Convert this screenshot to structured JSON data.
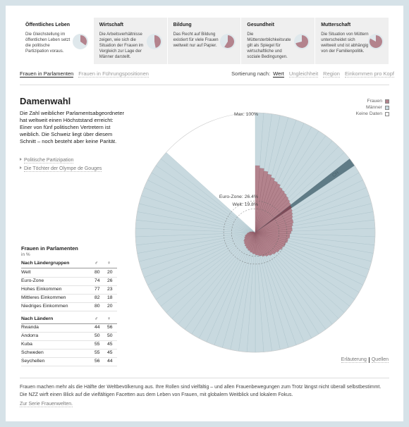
{
  "nav": [
    {
      "title": "Öffentliches Leben",
      "text": "Die Gleichstellung im öffentlichen Leben setzt die politische Partizipation voraus."
    },
    {
      "title": "Wirtschaft",
      "text": "Die Arbeitsverhältnisse zeigen, wie sich die Situation der Frauen im Vergleich zur Lage der Männer darstellt."
    },
    {
      "title": "Bildung",
      "text": "Das Recht auf Bildung existiert für viele Frauen weltweit nur auf Papier."
    },
    {
      "title": "Gesundheit",
      "text": "Die Müttersterblichkeitsrate gilt als Spiegel für wirtschaftliche und soziale Bedingungen."
    },
    {
      "title": "Mutterschaft",
      "text": "Die Situation von Müttern unterscheidet sich weltweit und ist abhängig von der Familienpolitik."
    }
  ],
  "subnav": {
    "tabs": [
      "Frauen in Parlamenten",
      "Frauen in Führungspositionen"
    ],
    "sort_label": "Sortierung nach:",
    "sort_options": [
      "Wert",
      "Ungleichheit",
      "Region",
      "Einkommen pro Kopf"
    ]
  },
  "article": {
    "title": "Damenwahl",
    "text": "Die Zahl weiblicher Parlamentsabgeordneter hat weltweit einen Höchststand erreicht: Einer von fünf politischen Vertretern ist weiblich. Die Schweiz liegt über diesem Schnitt – noch besteht aber keine Parität.",
    "links": [
      "Politische Partizipation",
      "Die Töchter der Olympe de Gouges"
    ]
  },
  "chart_data": {
    "type": "radial-bar",
    "rlim": [
      0,
      100
    ],
    "reference_lines": [
      {
        "value": 100,
        "label": "Max: 100%"
      },
      {
        "value": 26.4,
        "label": "Euro-Zone: 26.4%"
      },
      {
        "value": 19.8,
        "label": "Welt: 19.8%"
      }
    ],
    "no_data": {
      "name": "Keine Daten",
      "color": "#ffffff"
    },
    "highlight_color": "#5f7b86",
    "categories": [
      null,
      null,
      null,
      null,
      null,
      null,
      null,
      null,
      null,
      null,
      null,
      null,
      null,
      "CH",
      null,
      null,
      null,
      null,
      null,
      null,
      null,
      null,
      null,
      null,
      null,
      null,
      null,
      null,
      null,
      null,
      null,
      null,
      null,
      null,
      null,
      null,
      null,
      null,
      null,
      null,
      null,
      null,
      null,
      null,
      null,
      null,
      null,
      null,
      null,
      null,
      null,
      null,
      null,
      null,
      null,
      null,
      null,
      null,
      null,
      null,
      null,
      null,
      null,
      null,
      null,
      null,
      null,
      null,
      null,
      null,
      null,
      null,
      null,
      null,
      null,
      null,
      null,
      null,
      null,
      null,
      null,
      null,
      null,
      null,
      null,
      null,
      null,
      null,
      null,
      null
    ],
    "series": [
      {
        "name": "Frauen",
        "color": "#b3838d",
        "values": [
          56,
          54,
          52,
          50,
          48,
          46,
          45,
          43,
          42,
          41,
          40,
          39,
          38,
          37,
          36,
          35,
          34,
          33,
          33,
          32,
          31,
          31,
          30,
          29,
          29,
          28,
          28,
          27,
          27,
          26,
          26,
          25,
          25,
          24,
          24,
          23,
          23,
          22,
          22,
          21,
          21,
          20,
          20,
          19,
          19,
          18,
          18,
          17,
          17,
          16,
          16,
          15,
          15,
          14,
          14,
          13,
          13,
          12,
          12,
          11,
          10,
          10,
          9,
          9,
          8,
          7,
          7,
          6,
          5,
          5,
          4,
          3,
          3,
          2,
          1,
          1,
          0,
          0,
          null,
          null,
          null,
          null,
          null,
          null,
          null,
          null,
          null,
          null,
          null,
          null
        ]
      },
      {
        "name": "Männer",
        "color": "#c8d9df",
        "values": [
          44,
          46,
          48,
          50,
          52,
          54,
          55,
          57,
          58,
          59,
          60,
          61,
          62,
          63,
          64,
          65,
          66,
          67,
          67,
          68,
          69,
          69,
          70,
          71,
          71,
          72,
          72,
          73,
          73,
          74,
          74,
          75,
          75,
          76,
          76,
          77,
          77,
          78,
          78,
          79,
          79,
          80,
          80,
          81,
          81,
          82,
          82,
          83,
          83,
          84,
          84,
          85,
          85,
          86,
          86,
          87,
          87,
          88,
          88,
          89,
          90,
          90,
          91,
          91,
          92,
          93,
          93,
          94,
          95,
          95,
          96,
          97,
          97,
          98,
          99,
          99,
          100,
          100,
          null,
          null,
          null,
          null,
          null,
          null,
          null,
          null,
          null,
          null,
          null,
          null
        ]
      }
    ],
    "links": [
      "Erläuterung",
      "Quellen"
    ]
  },
  "table": {
    "title": "Frauen in Parlamenten",
    "unit": "in %",
    "columns": [
      "♂",
      "♀"
    ],
    "groups": [
      {
        "name": "Nach Ländergruppen",
        "rows": [
          [
            "Welt",
            80,
            20
          ],
          [
            "Euro-Zone",
            74,
            26
          ],
          [
            "Hohes Einkommen",
            77,
            23
          ],
          [
            "Mittleres Einkommen",
            82,
            18
          ],
          [
            "Niedriges Einkommen",
            80,
            20
          ]
        ]
      },
      {
        "name": "Nach Ländern",
        "rows": [
          [
            "Rwanda",
            44,
            56
          ],
          [
            "Andorra",
            50,
            50
          ],
          [
            "Kuba",
            55,
            45
          ],
          [
            "Schweden",
            55,
            45
          ],
          [
            "Seychellen",
            56,
            44
          ]
        ]
      }
    ]
  },
  "footer": {
    "text": "Frauen machen mehr als die Hälfte der Weltbevölkerung aus. Ihre Rollen sind vielfältig – und allen Frauenbewegungen zum Trotz längst nicht überall selbstbestimmt. Die NZZ wirft einen Blick auf die vielfältigen Facetten aus dem Leben von Frauen, mit globalem Weitblick und lokalem Fokus.",
    "link": "Zur Serie Frauenwelten."
  }
}
